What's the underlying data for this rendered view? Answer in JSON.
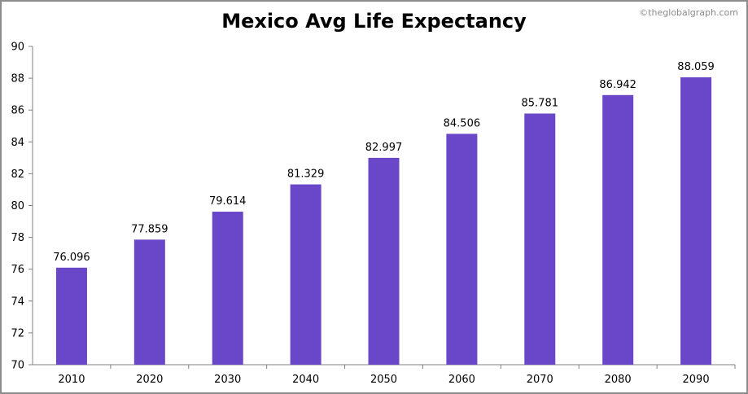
{
  "watermark": "©theglobalgraph.com",
  "chart_data": {
    "type": "bar",
    "title": "Mexico Avg Life Expectancy",
    "xlabel": "",
    "ylabel": "",
    "categories": [
      "2010",
      "2020",
      "2030",
      "2040",
      "2050",
      "2060",
      "2070",
      "2080",
      "2090"
    ],
    "values": [
      76.096,
      77.859,
      79.614,
      81.329,
      82.997,
      84.506,
      85.781,
      86.942,
      88.059
    ],
    "data_labels": [
      "76.096",
      "77.859",
      "79.614",
      "81.329",
      "82.997",
      "84.506",
      "85.781",
      "86.942",
      "88.059"
    ],
    "ylim": [
      70,
      90
    ],
    "yticks": [
      70,
      72,
      74,
      76,
      78,
      80,
      82,
      84,
      86,
      88,
      90
    ],
    "grid": false,
    "legend": "none",
    "bar_color": "#6a46c8"
  }
}
